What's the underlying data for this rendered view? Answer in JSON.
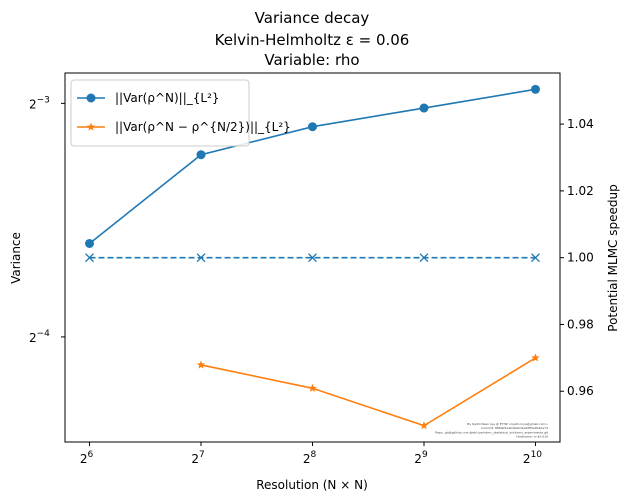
{
  "chart_data": {
    "type": "line",
    "title_lines": [
      "Variance decay",
      "Kelvin-Helmholtz ε = 0.06",
      "Variable: rho"
    ],
    "xlabel": "Resolution (N × N)",
    "ylabel_left": "Variance",
    "ylabel_right": "Potential MLMC speedup",
    "x_log2": [
      6,
      7,
      8,
      9,
      10
    ],
    "x_tick_base": "2",
    "x_tick_exponents": [
      "6",
      "7",
      "8",
      "9",
      "10"
    ],
    "y_left_log2_range": [
      -4.45,
      -2.87
    ],
    "y_left_ticks": [
      {
        "base": "2",
        "exp": "−3",
        "log2": -3
      },
      {
        "base": "2",
        "exp": "−4",
        "log2": -4
      }
    ],
    "y_right_range": [
      0.9448,
      1.0553
    ],
    "y_right_ticks": [
      "1.04",
      "1.02",
      "1.00",
      "0.98",
      "0.96"
    ],
    "legend_position": "upper-left",
    "series": [
      {
        "name": "||Var(ρ^N)||_{L²}",
        "axis": "left",
        "color": "#1f77b4",
        "marker": "circle",
        "log2_values": [
          -3.6,
          -3.22,
          -3.1,
          -3.02,
          -2.94
        ]
      },
      {
        "name": "||Var(ρ^N − ρ^{N/2})||_{L²}",
        "axis": "left",
        "color": "#ff7f0e",
        "marker": "star",
        "log2_values": [
          null,
          -4.12,
          -4.22,
          -4.38,
          -4.09
        ]
      },
      {
        "name": "",
        "axis": "right",
        "color": "#1f77b4",
        "marker": "x",
        "dashed": true,
        "values": [
          1.0,
          1.0,
          1.0,
          1.0,
          1.0
        ]
      }
    ],
    "watermark_lines": [
      "By Kjetil Olsen Lye @ ETHZ <kjetil.o.lye@gmail.com>",
      "Commit: 868a05e4b49a0d1a0085a0b4de7d",
      "Repo: git@github.com:kjetil-lye/mlmc_statistical_solutions_experiments.git",
      "Hostname: lo-a2-016"
    ]
  }
}
